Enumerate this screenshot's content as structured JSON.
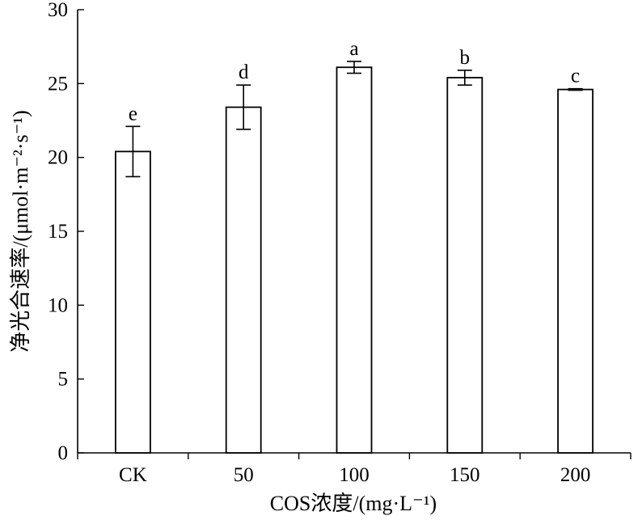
{
  "chart_data": {
    "type": "bar",
    "categories": [
      "CK",
      "50",
      "100",
      "150",
      "200"
    ],
    "values": [
      20.4,
      23.4,
      26.1,
      25.4,
      24.6
    ],
    "errors": [
      1.7,
      1.5,
      0.4,
      0.5,
      0.05
    ],
    "significance": [
      "e",
      "d",
      "a",
      "b",
      "c"
    ],
    "xlabel": "COS浓度/(mg·L⁻¹)",
    "ylabel": "净光合速率/(μmol·m⁻²·s⁻¹)",
    "ylim": [
      0,
      30
    ],
    "yticks": [
      0,
      5,
      10,
      15,
      20,
      25,
      30
    ],
    "grid": false,
    "legend": "none",
    "bar_fill": "#ffffff",
    "bar_stroke": "#000000"
  }
}
